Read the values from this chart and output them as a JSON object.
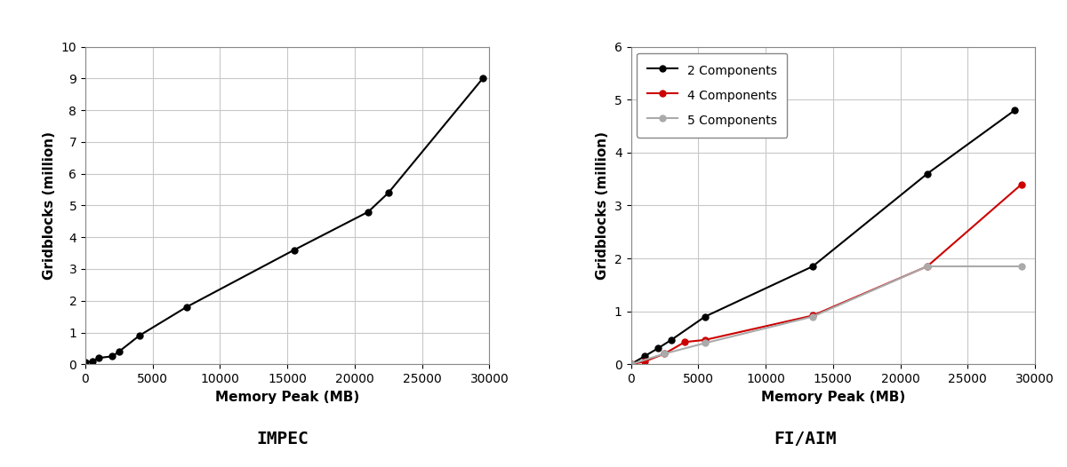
{
  "impec": {
    "x": [
      0,
      500,
      1000,
      2000,
      2500,
      4000,
      7500,
      15500,
      21000,
      22500,
      29500
    ],
    "y": [
      0.05,
      0.1,
      0.2,
      0.25,
      0.4,
      0.9,
      1.8,
      3.6,
      4.8,
      5.4,
      9.0
    ],
    "color": "#000000",
    "title": "IMPEC",
    "xlabel": "Memory Peak (MB)",
    "ylabel": "Gridblocks (million)",
    "xlim": [
      0,
      30000
    ],
    "ylim": [
      0,
      10
    ],
    "yticks": [
      0,
      1,
      2,
      3,
      4,
      5,
      6,
      7,
      8,
      9,
      10
    ],
    "xticks": [
      0,
      5000,
      10000,
      15000,
      20000,
      25000,
      30000
    ]
  },
  "fiaim": {
    "series": [
      {
        "label": "2 Components",
        "color": "#000000",
        "x": [
          0,
          1000,
          2000,
          3000,
          5500,
          13500,
          22000,
          28500
        ],
        "y": [
          0.0,
          0.15,
          0.3,
          0.46,
          0.9,
          1.85,
          3.6,
          4.8
        ]
      },
      {
        "label": "4 Components",
        "color": "#cc0000",
        "x": [
          0,
          1000,
          2500,
          4000,
          5500,
          13500,
          22000,
          29000
        ],
        "y": [
          0.0,
          0.05,
          0.2,
          0.42,
          0.46,
          0.92,
          1.85,
          3.4
        ]
      },
      {
        "label": "5 Components",
        "color": "#aaaaaa",
        "x": [
          0,
          2500,
          5500,
          13500,
          22000,
          29000
        ],
        "y": [
          0.0,
          0.2,
          0.4,
          0.9,
          1.85,
          1.85
        ]
      }
    ],
    "title": "FI/AIM",
    "xlabel": "Memory Peak (MB)",
    "ylabel": "Gridblocks (million)",
    "xlim": [
      0,
      30000
    ],
    "ylim": [
      0,
      6
    ],
    "yticks": [
      0,
      1,
      2,
      3,
      4,
      5,
      6
    ],
    "xticks": [
      0,
      5000,
      10000,
      15000,
      20000,
      25000,
      30000
    ]
  },
  "bg_color": "#ffffff",
  "grid_color": "#c8c8c8",
  "title_fontsize": 14,
  "label_fontsize": 11,
  "tick_fontsize": 10
}
